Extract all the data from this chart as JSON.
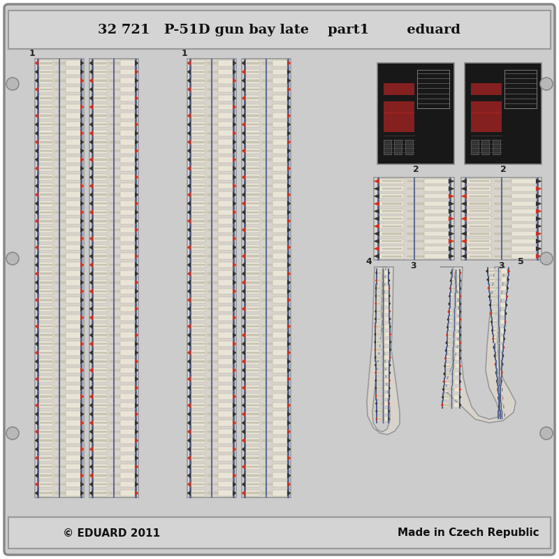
{
  "bg_color": "#c8c8c8",
  "card_color": "#cccccc",
  "header_color": "#d4d4d4",
  "border_color": "#999999",
  "title_text": "32 721   P-51D gun bay late    part1        eduard",
  "bottom_left": "© EDUARD 2011",
  "bottom_right": "Made in Czech Republic",
  "belt_bg": "#e8e4dc",
  "belt_frame": "#aaaaaa",
  "bullet_body": "#ddd8cc",
  "bullet_tip_red": "#cc3322",
  "bullet_tip_black": "#333333",
  "belt_blue": "#4a5a8a",
  "dark_panel_bg": "#1a1a1a",
  "label_color": "#222222",
  "card_inner": "#c0c0c0",
  "screw_color": "#b8b8b8",
  "panel2_red": "#aa2222",
  "panel2_gray": "#444444",
  "panel2_lightgray": "#888888",
  "panel2_white": "#cccccc"
}
